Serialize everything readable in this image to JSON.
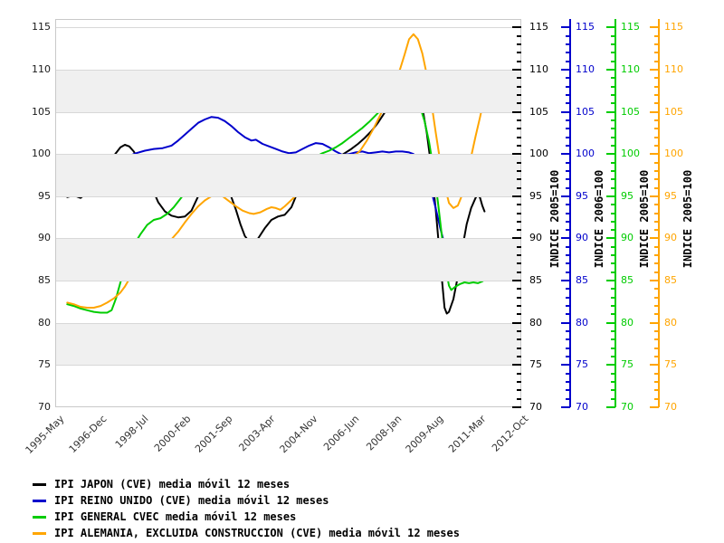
{
  "chart_data": {
    "type": "line",
    "title": "",
    "x_axis": {
      "tick_labels": [
        "1995-May",
        "1996-Dec",
        "1998-Jul",
        "2000-Feb",
        "2001-Sep",
        "2003-Apr",
        "2004-Nov",
        "2006-Jun",
        "2008-Jan",
        "2009-Aug",
        "2011-Mar",
        "2012-Oct"
      ],
      "months_between_ticks": 19,
      "total_months": 209
    },
    "ylim": [
      70,
      115
    ],
    "y_tick_step": 5,
    "y_minor_step": 1,
    "grid": "horizontal-bands",
    "band_fill": "#f0f0f0",
    "gray_bands": [
      [
        110,
        105
      ],
      [
        100,
        95
      ],
      [
        90,
        85
      ],
      [
        80,
        75
      ]
    ],
    "y_axis_left": {
      "color": "#1a1a1a",
      "label": ""
    },
    "y_axes_right": [
      {
        "label": "INDICE 2005=100",
        "color": "#000000"
      },
      {
        "label": "INDICE 2006=100",
        "color": "#0000cc"
      },
      {
        "label": "INDICE 2005=100",
        "color": "#00cc00"
      },
      {
        "label": "INDICE 2005=100",
        "color": "#ffa500"
      }
    ],
    "series": [
      {
        "name": "IPI JAPON (CVE) media móvil 12 meses",
        "color": "#000000",
        "points": [
          [
            5,
            94.9
          ],
          [
            8,
            95.1
          ],
          [
            11,
            94.8
          ],
          [
            14,
            95.4
          ],
          [
            17,
            96.3
          ],
          [
            20,
            97.3
          ],
          [
            23,
            98.5
          ],
          [
            26,
            99.8
          ],
          [
            29,
            100.8
          ],
          [
            31,
            101.1
          ],
          [
            33,
            100.9
          ],
          [
            35,
            100.3
          ],
          [
            37,
            99.4
          ],
          [
            40,
            97.7
          ],
          [
            43,
            96.1
          ],
          [
            46,
            94.3
          ],
          [
            49,
            93.2
          ],
          [
            52,
            92.7
          ],
          [
            55,
            92.5
          ],
          [
            58,
            92.6
          ],
          [
            61,
            93.3
          ],
          [
            64,
            95.0
          ],
          [
            67,
            97.3
          ],
          [
            69,
            98.9
          ],
          [
            71,
            99.5
          ],
          [
            73,
            98.9
          ],
          [
            75,
            97.6
          ],
          [
            78,
            95.6
          ],
          [
            81,
            93.4
          ],
          [
            83,
            91.7
          ],
          [
            85,
            90.3
          ],
          [
            87,
            89.6
          ],
          [
            89,
            89.5
          ],
          [
            91,
            90.0
          ],
          [
            94,
            91.2
          ],
          [
            97,
            92.2
          ],
          [
            100,
            92.6
          ],
          [
            103,
            92.8
          ],
          [
            106,
            93.7
          ],
          [
            109,
            95.6
          ],
          [
            112,
            97.4
          ],
          [
            115,
            98.6
          ],
          [
            118,
            99.1
          ],
          [
            121,
            99.3
          ],
          [
            124,
            99.3
          ],
          [
            127,
            99.6
          ],
          [
            130,
            100.1
          ],
          [
            133,
            100.6
          ],
          [
            136,
            101.2
          ],
          [
            139,
            101.9
          ],
          [
            142,
            102.7
          ],
          [
            145,
            103.7
          ],
          [
            148,
            104.9
          ],
          [
            151,
            106.1
          ],
          [
            154,
            107.2
          ],
          [
            157,
            108.2
          ],
          [
            159,
            108.7
          ],
          [
            161,
            108.9
          ],
          [
            163,
            107.5
          ],
          [
            165,
            105.5
          ],
          [
            167,
            102.5
          ],
          [
            169,
            98.5
          ],
          [
            171,
            93.5
          ],
          [
            173,
            87.5
          ],
          [
            175,
            81.8
          ],
          [
            176,
            81.1
          ],
          [
            177,
            81.3
          ],
          [
            179,
            82.8
          ],
          [
            181,
            85.5
          ],
          [
            183,
            88.8
          ],
          [
            185,
            91.7
          ],
          [
            187,
            93.6
          ],
          [
            189,
            94.8
          ],
          [
            190,
            95.2
          ],
          [
            191,
            94.8
          ],
          [
            192,
            93.9
          ],
          [
            193,
            93.2
          ]
        ]
      },
      {
        "name": "IPI REINO UNIDO (CVE) media móvil 12 meses",
        "color": "#0000cc",
        "points": [
          [
            5,
            97.3
          ],
          [
            8,
            97.6
          ],
          [
            12,
            98.0
          ],
          [
            16,
            98.4
          ],
          [
            20,
            98.7
          ],
          [
            24,
            99.0
          ],
          [
            28,
            99.3
          ],
          [
            32,
            99.7
          ],
          [
            36,
            100.1
          ],
          [
            40,
            100.4
          ],
          [
            44,
            100.6
          ],
          [
            48,
            100.7
          ],
          [
            52,
            101.0
          ],
          [
            55,
            101.6
          ],
          [
            58,
            102.3
          ],
          [
            61,
            103.0
          ],
          [
            64,
            103.7
          ],
          [
            67,
            104.1
          ],
          [
            70,
            104.4
          ],
          [
            73,
            104.3
          ],
          [
            76,
            103.9
          ],
          [
            79,
            103.3
          ],
          [
            82,
            102.6
          ],
          [
            85,
            102.0
          ],
          [
            88,
            101.6
          ],
          [
            90,
            101.7
          ],
          [
            93,
            101.2
          ],
          [
            96,
            100.9
          ],
          [
            99,
            100.6
          ],
          [
            102,
            100.3
          ],
          [
            105,
            100.1
          ],
          [
            108,
            100.2
          ],
          [
            111,
            100.6
          ],
          [
            114,
            101.0
          ],
          [
            117,
            101.3
          ],
          [
            120,
            101.2
          ],
          [
            123,
            100.8
          ],
          [
            126,
            100.3
          ],
          [
            129,
            99.9
          ],
          [
            132,
            100.0
          ],
          [
            135,
            100.2
          ],
          [
            138,
            100.3
          ],
          [
            141,
            100.1
          ],
          [
            144,
            100.2
          ],
          [
            147,
            100.3
          ],
          [
            150,
            100.2
          ],
          [
            153,
            100.3
          ],
          [
            156,
            100.3
          ],
          [
            159,
            100.2
          ],
          [
            161,
            100.0
          ],
          [
            163,
            99.5
          ],
          [
            165,
            98.7
          ],
          [
            167,
            97.4
          ],
          [
            169,
            95.7
          ],
          [
            171,
            93.6
          ],
          [
            173,
            91.3
          ],
          [
            175,
            89.3
          ],
          [
            177,
            88.0
          ],
          [
            179,
            87.4
          ],
          [
            181,
            87.2
          ],
          [
            183,
            87.5
          ],
          [
            185,
            88.0
          ],
          [
            187,
            88.5
          ],
          [
            189,
            89.0
          ],
          [
            191,
            89.4
          ],
          [
            193,
            89.6
          ]
        ]
      },
      {
        "name": "IPI GENERAL CVEC media móvil 12 meses",
        "color": "#00cc00",
        "points": [
          [
            5,
            82.2
          ],
          [
            8,
            82.0
          ],
          [
            11,
            81.7
          ],
          [
            14,
            81.5
          ],
          [
            17,
            81.3
          ],
          [
            20,
            81.2
          ],
          [
            23,
            81.2
          ],
          [
            25,
            81.5
          ],
          [
            27,
            82.9
          ],
          [
            29,
            84.8
          ],
          [
            31,
            86.5
          ],
          [
            33,
            87.9
          ],
          [
            35,
            89.2
          ],
          [
            38,
            90.5
          ],
          [
            41,
            91.6
          ],
          [
            44,
            92.2
          ],
          [
            47,
            92.4
          ],
          [
            50,
            92.9
          ],
          [
            53,
            93.7
          ],
          [
            56,
            94.7
          ],
          [
            59,
            95.7
          ],
          [
            62,
            96.7
          ],
          [
            65,
            97.6
          ],
          [
            67,
            98.1
          ],
          [
            69,
            98.4
          ],
          [
            72,
            98.3
          ],
          [
            75,
            98.0
          ],
          [
            78,
            97.5
          ],
          [
            81,
            97.1
          ],
          [
            84,
            96.8
          ],
          [
            87,
            96.7
          ],
          [
            90,
            96.9
          ],
          [
            93,
            97.3
          ],
          [
            96,
            97.6
          ],
          [
            99,
            97.7
          ],
          [
            102,
            97.8
          ],
          [
            105,
            98.0
          ],
          [
            108,
            98.3
          ],
          [
            111,
            98.7
          ],
          [
            114,
            99.2
          ],
          [
            117,
            99.7
          ],
          [
            120,
            100.1
          ],
          [
            123,
            100.4
          ],
          [
            126,
            100.8
          ],
          [
            129,
            101.3
          ],
          [
            132,
            101.9
          ],
          [
            135,
            102.5
          ],
          [
            138,
            103.1
          ],
          [
            141,
            103.8
          ],
          [
            144,
            104.6
          ],
          [
            147,
            105.4
          ],
          [
            150,
            106.2
          ],
          [
            152,
            106.8
          ],
          [
            154,
            107.2
          ],
          [
            156,
            107.4
          ],
          [
            158,
            107.4
          ],
          [
            160,
            107.2
          ],
          [
            162,
            106.6
          ],
          [
            164,
            105.6
          ],
          [
            166,
            103.9
          ],
          [
            168,
            101.5
          ],
          [
            170,
            98.3
          ],
          [
            172,
            94.3
          ],
          [
            174,
            89.8
          ],
          [
            176,
            85.8
          ],
          [
            177,
            84.4
          ],
          [
            178,
            83.9
          ],
          [
            180,
            84.3
          ],
          [
            182,
            84.6
          ],
          [
            184,
            84.8
          ],
          [
            186,
            84.7
          ],
          [
            188,
            84.8
          ],
          [
            190,
            84.7
          ],
          [
            192,
            84.9
          ],
          [
            193,
            85.1
          ]
        ]
      },
      {
        "name": "IPI ALEMANIA, EXCLUIDA CONSTRUCCION (CVE) media móvil 12 meses",
        "color": "#ffa500",
        "points": [
          [
            5,
            82.4
          ],
          [
            8,
            82.2
          ],
          [
            11,
            81.9
          ],
          [
            14,
            81.8
          ],
          [
            17,
            81.8
          ],
          [
            20,
            82.0
          ],
          [
            23,
            82.4
          ],
          [
            26,
            82.9
          ],
          [
            29,
            83.6
          ],
          [
            31,
            84.3
          ],
          [
            33,
            85.2
          ],
          [
            35,
            86.2
          ],
          [
            37,
            87.1
          ],
          [
            39,
            87.8
          ],
          [
            41,
            88.1
          ],
          [
            44,
            88.2
          ],
          [
            47,
            88.4
          ],
          [
            49,
            88.9
          ],
          [
            52,
            89.9
          ],
          [
            55,
            90.8
          ],
          [
            58,
            91.9
          ],
          [
            61,
            92.9
          ],
          [
            64,
            93.8
          ],
          [
            67,
            94.5
          ],
          [
            70,
            95.0
          ],
          [
            72,
            95.2
          ],
          [
            75,
            95.0
          ],
          [
            78,
            94.4
          ],
          [
            81,
            93.8
          ],
          [
            84,
            93.3
          ],
          [
            87,
            93.0
          ],
          [
            89,
            92.9
          ],
          [
            92,
            93.1
          ],
          [
            95,
            93.5
          ],
          [
            97,
            93.7
          ],
          [
            99,
            93.6
          ],
          [
            101,
            93.4
          ],
          [
            103,
            93.8
          ],
          [
            105,
            94.3
          ],
          [
            107,
            94.8
          ],
          [
            109,
            95.4
          ],
          [
            111,
            96.1
          ],
          [
            113,
            96.4
          ],
          [
            116,
            96.6
          ],
          [
            119,
            97.0
          ],
          [
            122,
            97.4
          ],
          [
            125,
            97.7
          ],
          [
            128,
            98.3
          ],
          [
            131,
            99.0
          ],
          [
            134,
            99.7
          ],
          [
            137,
            100.4
          ],
          [
            140,
            101.6
          ],
          [
            143,
            103.0
          ],
          [
            146,
            104.6
          ],
          [
            149,
            106.3
          ],
          [
            152,
            108.1
          ],
          [
            155,
            110.1
          ],
          [
            157,
            111.8
          ],
          [
            159,
            113.6
          ],
          [
            161,
            114.2
          ],
          [
            163,
            113.6
          ],
          [
            165,
            111.9
          ],
          [
            167,
            109.4
          ],
          [
            169,
            106.2
          ],
          [
            171,
            102.6
          ],
          [
            173,
            99.2
          ],
          [
            175,
            96.3
          ],
          [
            177,
            94.2
          ],
          [
            179,
            93.6
          ],
          [
            181,
            93.9
          ],
          [
            183,
            95.2
          ],
          [
            185,
            97.3
          ],
          [
            187,
            99.7
          ],
          [
            189,
            102.1
          ],
          [
            191,
            104.4
          ],
          [
            192,
            105.6
          ],
          [
            193,
            107.2
          ]
        ]
      }
    ]
  },
  "legend": {
    "items": [
      {
        "label": "IPI JAPON (CVE) media móvil 12 meses",
        "color": "#000000"
      },
      {
        "label": "IPI REINO UNIDO (CVE) media móvil 12 meses",
        "color": "#0000cc"
      },
      {
        "label": "IPI GENERAL CVEC media móvil 12 meses",
        "color": "#00cc00"
      },
      {
        "label": "IPI ALEMANIA, EXCLUIDA CONSTRUCCION (CVE) media móvil 12 meses",
        "color": "#ffa500"
      }
    ]
  }
}
